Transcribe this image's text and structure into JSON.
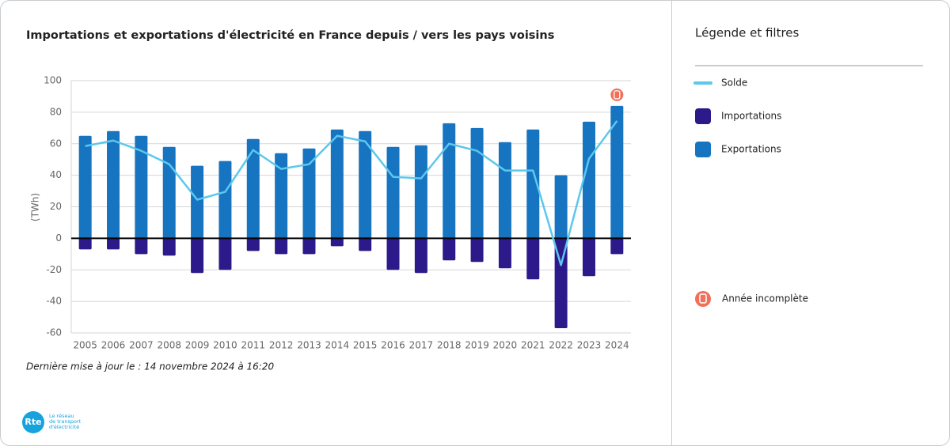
{
  "chart_data": {
    "type": "bar",
    "title": "Importations et exportations d'électricité en France depuis / vers les pays voisins",
    "y_label": "(TWh)",
    "categories": [
      "2005",
      "2006",
      "2007",
      "2008",
      "2009",
      "2010",
      "2011",
      "2012",
      "2013",
      "2014",
      "2015",
      "2016",
      "2017",
      "2018",
      "2019",
      "2020",
      "2021",
      "2022",
      "2023",
      "2024"
    ],
    "series": [
      {
        "name": "Solde",
        "type": "line",
        "color": "#5bc8ec",
        "values": [
          58.5,
          62,
          55.5,
          47,
          24.5,
          29.5,
          56,
          44,
          47,
          65,
          61.5,
          39,
          38,
          60,
          55.5,
          43,
          43,
          -17,
          50.5,
          74.5
        ]
      },
      {
        "name": "Importations",
        "type": "bar",
        "color": "#2d1a8a",
        "values": [
          -7,
          -7,
          -10,
          -11,
          -22,
          -20,
          -8,
          -10,
          -10,
          -5,
          -8,
          -20,
          -22,
          -14,
          -15,
          -19,
          -26,
          -57,
          -24,
          -10
        ]
      },
      {
        "name": "Exportations",
        "type": "bar",
        "color": "#1774c1",
        "values": [
          65,
          68,
          65,
          58,
          46,
          49,
          63,
          54,
          57,
          69,
          68,
          58,
          59,
          73,
          70,
          61,
          69,
          40,
          74,
          84
        ]
      }
    ],
    "ylim": [
      -60,
      100
    ],
    "yticks": [
      -60,
      -40,
      -20,
      0,
      20,
      40,
      60,
      80,
      100
    ],
    "grid": true
  },
  "legend_panel": {
    "title": "Légende et filtres",
    "incomplete_label": "Année incomplète"
  },
  "footer": {
    "update_note": "Dernière mise à jour le : 14 novembre 2024 à 16:20",
    "logo": "Rte",
    "logo_caption": [
      "Le réseau",
      "de transport",
      "d'électricité"
    ]
  }
}
